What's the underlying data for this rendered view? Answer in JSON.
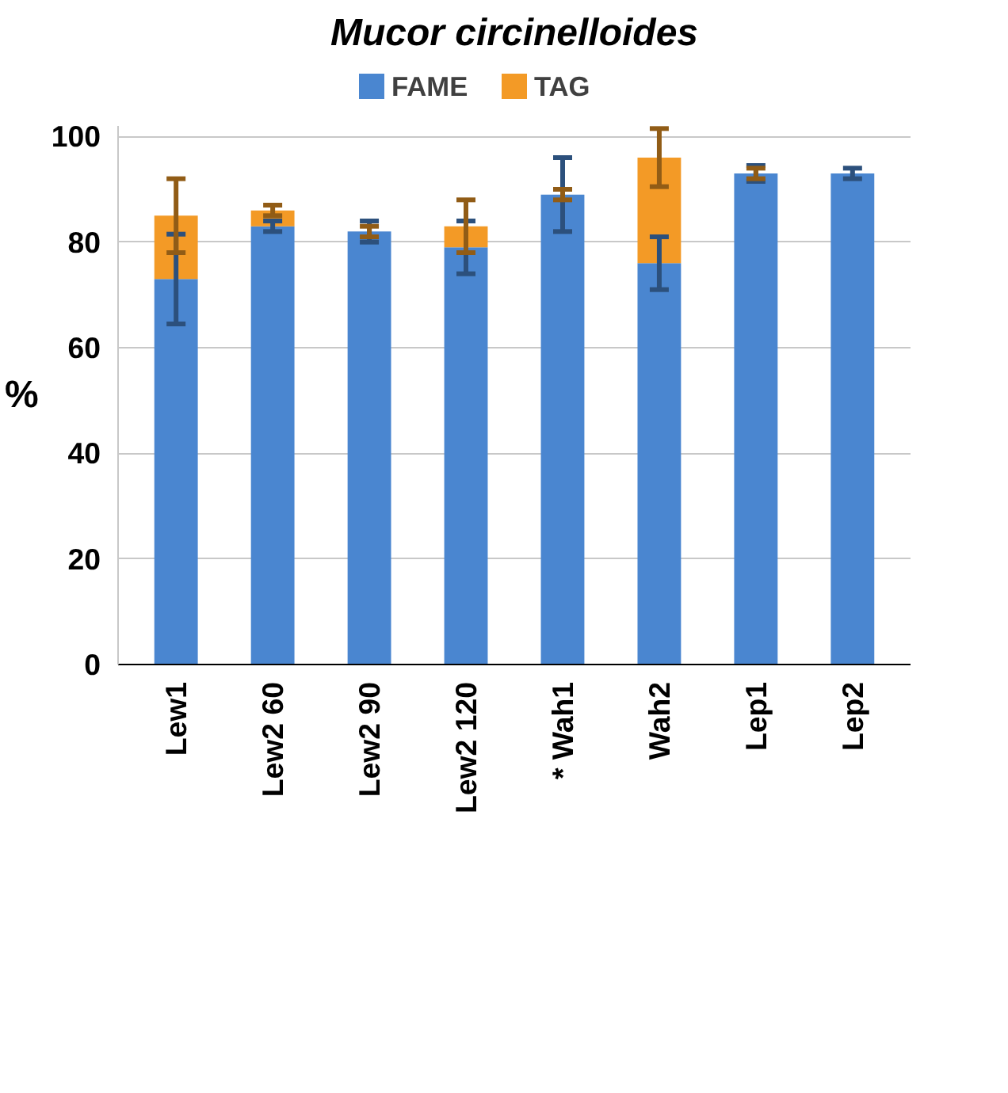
{
  "chart_data": {
    "type": "bar",
    "title": "Mucor circinelloides",
    "ylabel": "%",
    "stacked": true,
    "categories": [
      "Lew1",
      "Lew2 60",
      "Lew2 90",
      "Lew2 120",
      "* Wah1",
      "Wah2",
      "Lep1",
      "Lep2"
    ],
    "series": [
      {
        "name": "FAME",
        "color": "#4a86d0",
        "values": [
          73,
          83,
          82,
          79,
          89,
          76,
          93,
          93
        ],
        "errors": [
          8.5,
          1,
          2,
          5,
          7,
          5,
          1.5,
          1
        ]
      },
      {
        "name": "TAG",
        "color": "#f39a26",
        "values": [
          12,
          3,
          0,
          4,
          0,
          20,
          0,
          0
        ],
        "errors": [
          7,
          1,
          1,
          5,
          1,
          5.5,
          1,
          null
        ]
      }
    ],
    "ylim": [
      0,
      102
    ],
    "yticks": [
      0,
      20,
      40,
      60,
      80,
      100
    ],
    "grid": "y",
    "legend": "top"
  }
}
